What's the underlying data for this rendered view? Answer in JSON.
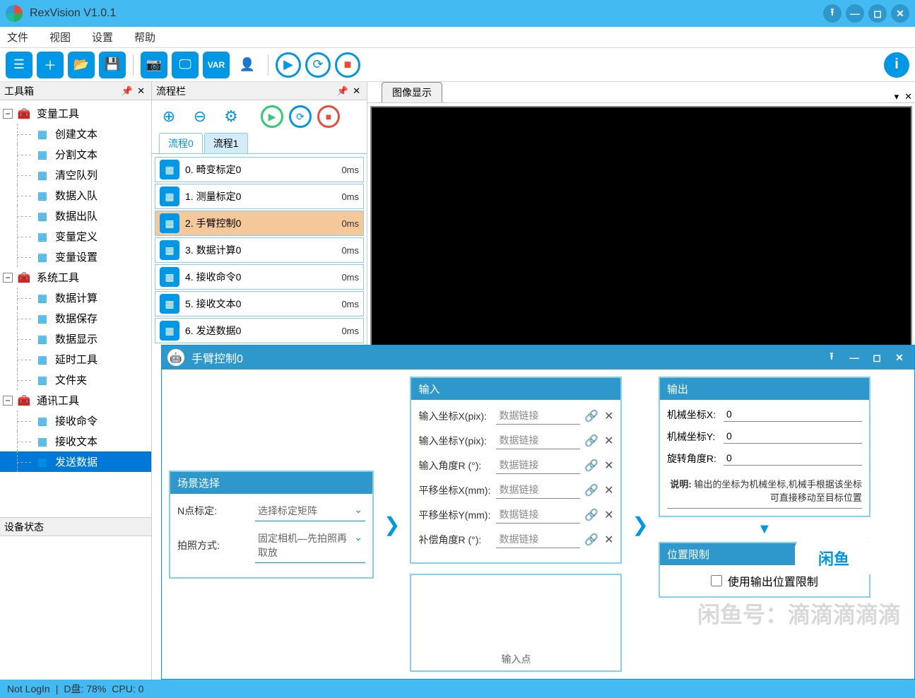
{
  "app": {
    "title": "RexVision V1.0.1"
  },
  "menu": [
    "文件",
    "视图",
    "设置",
    "帮助"
  ],
  "toolbox": {
    "title": "工具箱",
    "groups": [
      {
        "label": "变量工具",
        "children": [
          "创建文本",
          "分割文本",
          "清空队列",
          "数据入队",
          "数据出队",
          "变量定义",
          "变量设置"
        ]
      },
      {
        "label": "系统工具",
        "children": [
          "数据计算",
          "数据保存",
          "数据显示",
          "延时工具",
          "文件夹"
        ]
      },
      {
        "label": "通讯工具",
        "children": [
          "接收命令",
          "接收文本",
          "发送数据"
        ],
        "selected": "发送数据"
      }
    ]
  },
  "device_status_title": "设备状态",
  "flow": {
    "title": "流程栏",
    "tabs": [
      "流程0",
      "流程1"
    ],
    "active_tab": 0,
    "items": [
      {
        "label": "0. 畸变标定0",
        "time": "0ms"
      },
      {
        "label": "1. 测量标定0",
        "time": "0ms"
      },
      {
        "label": "2. 手臂控制0",
        "time": "0ms",
        "selected": true
      },
      {
        "label": "3. 数据计算0",
        "time": "0ms"
      },
      {
        "label": "4. 接收命令0",
        "time": "0ms"
      },
      {
        "label": "5. 接收文本0",
        "time": "0ms"
      },
      {
        "label": "6. 发送数据0",
        "time": "0ms"
      }
    ]
  },
  "image_panel": {
    "tab": "图像显示"
  },
  "dialog": {
    "title": "手臂控制0",
    "scene": {
      "header": "场景选择",
      "fields": [
        {
          "label": "N点标定:",
          "value": "选择标定矩阵"
        },
        {
          "label": "拍照方式:",
          "value": "固定相机—先拍照再取放"
        }
      ]
    },
    "input": {
      "header": "输入",
      "rows": [
        {
          "label": "输入坐标X(pix):",
          "value": "数据链接"
        },
        {
          "label": "输入坐标Y(pix):",
          "value": "数据链接"
        },
        {
          "label": "输入角度R  (°):",
          "value": "数据链接"
        },
        {
          "label": "平移坐标X(mm):",
          "value": "数据链接"
        },
        {
          "label": "平移坐标Y(mm):",
          "value": "数据链接"
        },
        {
          "label": "补偿角度R  (°):",
          "value": "数据链接"
        }
      ]
    },
    "output": {
      "header": "输出",
      "rows": [
        {
          "label": "机械坐标X:",
          "value": "0"
        },
        {
          "label": "机械坐标Y:",
          "value": "0"
        },
        {
          "label": "旋转角度R:",
          "value": "0"
        }
      ],
      "note_label": "说明:",
      "note": "输出的坐标为机械坐标,机械手根据该坐标可直接移动至目标位置"
    },
    "limit": {
      "header": "位置限制",
      "checkbox": "使用输出位置限制"
    },
    "footer_label": "输入点"
  },
  "status": {
    "login": "Not LogIn",
    "disk": "D盘:  78%",
    "cpu": "CPU:  0"
  },
  "watermark": {
    "logo": "闲鱼",
    "text": "闲鱼号：滴滴滴滴滴"
  }
}
